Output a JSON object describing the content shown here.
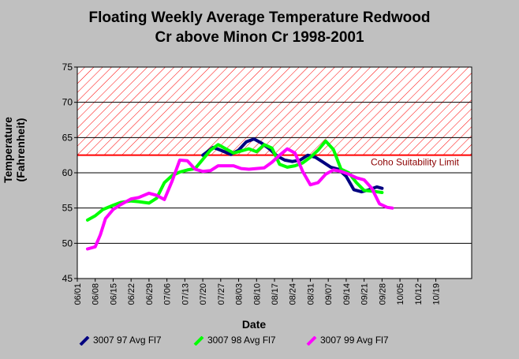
{
  "title_line1": "Floating Weekly Average Temperature Redwood",
  "title_line2": "Cr above Minon Cr 1998-2001",
  "chart_data": {
    "type": "line",
    "ylabel_line1": "Temperature",
    "ylabel_line2": "(Fahrenheit)",
    "xlabel": "Date",
    "ylim": [
      45,
      75
    ],
    "yticks": [
      45,
      50,
      55,
      60,
      65,
      70,
      75
    ],
    "x_ticks": [
      "06/01",
      "06/08",
      "06/15",
      "06/22",
      "06/29",
      "07/06",
      "07/13",
      "07/20",
      "07/27",
      "08/03",
      "08/10",
      "08/17",
      "08/24",
      "08/31",
      "09/07",
      "09/14",
      "09/21",
      "09/28",
      "10/05",
      "10/12",
      "10/19"
    ],
    "x_range_days": [
      0,
      154
    ],
    "grid": "horizontal",
    "threshold": {
      "value": 62.5,
      "label": "Coho Suitability Limit",
      "color": "#ff0000"
    },
    "hatch_zone": [
      62.5,
      75
    ],
    "series": [
      {
        "name": "3007 97 Avg Fl7",
        "color": "#000080",
        "x": [
          "07/20",
          "07/24",
          "07/27",
          "07/31",
          "08/03",
          "08/06",
          "08/09",
          "08/12",
          "08/15",
          "08/18",
          "08/21",
          "08/24",
          "08/27",
          "08/30",
          "09/02",
          "09/05",
          "09/08",
          "09/11",
          "09/14",
          "09/17",
          "09/20",
          "09/23",
          "09/26",
          "09/28"
        ],
        "y": [
          62.5,
          63.6,
          63.2,
          62.6,
          63.2,
          64.4,
          64.8,
          64.2,
          63.4,
          62.4,
          61.8,
          61.6,
          61.8,
          62.5,
          62.2,
          61.5,
          60.8,
          60.5,
          59.5,
          57.6,
          57.3,
          57.6,
          58.0,
          57.8
        ]
      },
      {
        "name": "3007 98 Avg Fl7",
        "color": "#00ff00",
        "x": [
          "06/05",
          "06/08",
          "06/11",
          "06/15",
          "06/18",
          "06/22",
          "06/25",
          "06/29",
          "07/02",
          "07/05",
          "07/08",
          "07/11",
          "07/14",
          "07/17",
          "07/20",
          "07/23",
          "07/26",
          "07/29",
          "08/01",
          "08/04",
          "08/07",
          "08/10",
          "08/13",
          "08/16",
          "08/19",
          "08/22",
          "08/25",
          "08/28",
          "08/31",
          "09/03",
          "09/06",
          "09/09",
          "09/12",
          "09/15",
          "09/18",
          "09/21",
          "09/24",
          "09/28"
        ],
        "y": [
          53.3,
          53.9,
          54.8,
          55.4,
          55.8,
          56.0,
          55.9,
          55.7,
          56.4,
          58.6,
          59.6,
          60.1,
          60.4,
          60.6,
          61.9,
          63.2,
          64.0,
          63.4,
          62.8,
          63.1,
          63.4,
          63.0,
          64.0,
          63.5,
          61.2,
          60.8,
          61.0,
          61.4,
          62.2,
          63.2,
          64.5,
          63.3,
          60.5,
          60.0,
          58.6,
          57.5,
          57.4,
          57.2
        ]
      },
      {
        "name": "3007 99 Avg Fl7",
        "color": "#ff00ff",
        "x": [
          "06/05",
          "06/08",
          "06/10",
          "06/12",
          "06/15",
          "06/18",
          "06/22",
          "06/25",
          "06/29",
          "07/02",
          "07/05",
          "07/08",
          "07/11",
          "07/14",
          "07/17",
          "07/20",
          "07/23",
          "07/26",
          "07/29",
          "08/01",
          "08/04",
          "08/07",
          "08/10",
          "08/13",
          "08/16",
          "08/19",
          "08/22",
          "08/25",
          "08/28",
          "08/31",
          "09/03",
          "09/06",
          "09/09",
          "09/12",
          "09/15",
          "09/18",
          "09/21",
          "09/24",
          "09/27",
          "09/30",
          "10/02"
        ],
        "y": [
          49.2,
          49.5,
          51.2,
          53.5,
          54.8,
          55.5,
          56.3,
          56.5,
          57.1,
          56.8,
          56.2,
          58.8,
          61.8,
          61.7,
          60.5,
          60.2,
          60.3,
          61.0,
          61.0,
          61.0,
          60.6,
          60.5,
          60.6,
          60.7,
          61.5,
          62.5,
          63.4,
          62.8,
          60.2,
          58.3,
          58.6,
          59.8,
          60.4,
          60.2,
          59.8,
          59.3,
          59.0,
          57.8,
          55.6,
          55.1,
          55.0
        ]
      }
    ],
    "legend_position": "bottom"
  }
}
